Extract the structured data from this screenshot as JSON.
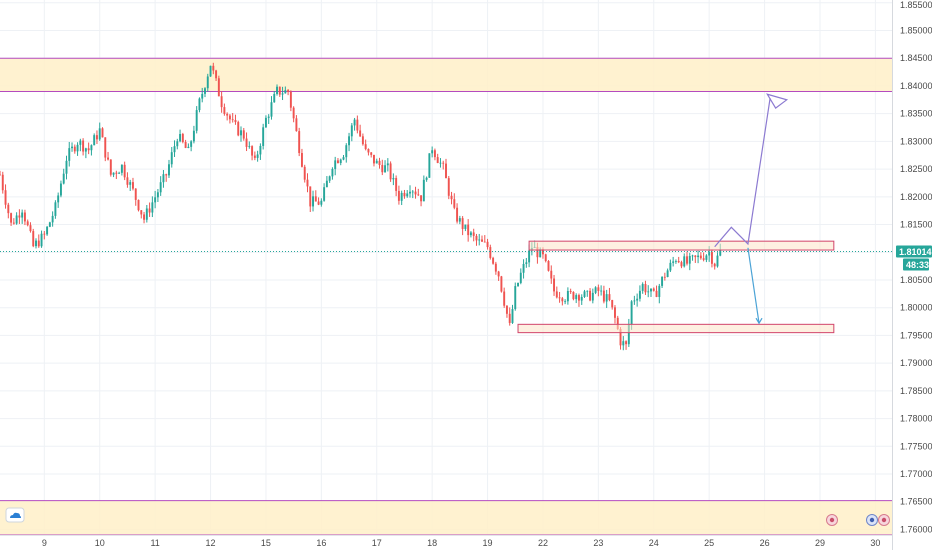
{
  "colors": {
    "background": "#ffffff",
    "grid": "#eef1f5",
    "up_candle": "#26a69a",
    "down_candle": "#ef5350",
    "zone_fill": "#fff0c8",
    "zone_border": "#b44bbf",
    "box_fill": "#fde3c8",
    "box_border": "#d1456b",
    "projection_up": "#8c7ad1",
    "projection_down": "#4ba3d6",
    "price_line": "#26a69a",
    "badge": "#26a69a"
  },
  "icons": {
    "logo": "cloud-logo-icon",
    "event_1": "flag-event-icon",
    "event_2": "flag-event-icon",
    "event_3": "flag-event-icon"
  },
  "chart_data": {
    "type": "candlestick",
    "title": "",
    "xlabel": "",
    "ylabel": "",
    "y_axis_side": "right",
    "ylim": [
      1.759,
      1.8555
    ],
    "grid": true,
    "y_ticks": [
      "1.85500",
      "1.85000",
      "1.84500",
      "1.84000",
      "1.83500",
      "1.83000",
      "1.82500",
      "1.82000",
      "1.81500",
      "1.81000",
      "1.80500",
      "1.80000",
      "1.79500",
      "1.79000",
      "1.78500",
      "1.78000",
      "1.77500",
      "1.77000",
      "1.76500",
      "1.76000"
    ],
    "x_ticks": [
      {
        "label": "9",
        "t": 8
      },
      {
        "label": "10",
        "t": 18
      },
      {
        "label": "11",
        "t": 28
      },
      {
        "label": "12",
        "t": 38
      },
      {
        "label": "15",
        "t": 48
      },
      {
        "label": "16",
        "t": 58
      },
      {
        "label": "17",
        "t": 68
      },
      {
        "label": "18",
        "t": 78
      },
      {
        "label": "19",
        "t": 88
      },
      {
        "label": "22",
        "t": 98
      },
      {
        "label": "23",
        "t": 108
      },
      {
        "label": "24",
        "t": 118
      },
      {
        "label": "25",
        "t": 128
      },
      {
        "label": "26",
        "t": 138
      },
      {
        "label": "29",
        "t": 148
      },
      {
        "label": "30",
        "t": 158
      }
    ],
    "x_range": [
      0,
      161
    ],
    "close_anchors": [
      [
        0,
        1.824
      ],
      [
        2,
        1.815
      ],
      [
        4,
        1.818
      ],
      [
        6,
        1.811
      ],
      [
        8,
        1.813
      ],
      [
        10,
        1.818
      ],
      [
        12,
        1.827
      ],
      [
        14,
        1.83
      ],
      [
        16,
        1.8285
      ],
      [
        18,
        1.832
      ],
      [
        20,
        1.824
      ],
      [
        22,
        1.8255
      ],
      [
        24,
        1.821
      ],
      [
        26,
        1.816
      ],
      [
        28,
        1.82
      ],
      [
        30,
        1.824
      ],
      [
        32,
        1.831
      ],
      [
        34,
        1.828
      ],
      [
        36,
        1.837
      ],
      [
        38,
        1.844
      ],
      [
        40,
        1.837
      ],
      [
        42,
        1.833
      ],
      [
        44,
        1.831
      ],
      [
        46,
        1.826
      ],
      [
        48,
        1.834
      ],
      [
        50,
        1.839
      ],
      [
        52,
        1.839
      ],
      [
        54,
        1.829
      ],
      [
        56,
        1.819
      ],
      [
        58,
        1.819
      ],
      [
        60,
        1.826
      ],
      [
        62,
        1.828
      ],
      [
        64,
        1.834
      ],
      [
        66,
        1.828
      ],
      [
        68,
        1.826
      ],
      [
        70,
        1.825
      ],
      [
        72,
        1.82
      ],
      [
        74,
        1.822
      ],
      [
        76,
        1.82
      ],
      [
        78,
        1.829
      ],
      [
        80,
        1.825
      ],
      [
        82,
        1.817
      ],
      [
        84,
        1.814
      ],
      [
        86,
        1.812
      ],
      [
        88,
        1.811
      ],
      [
        90,
        1.806
      ],
      [
        92,
        1.7965
      ],
      [
        93,
        1.803
      ],
      [
        94,
        1.806
      ],
      [
        96,
        1.811
      ],
      [
        98,
        1.809
      ],
      [
        100,
        1.803
      ],
      [
        102,
        1.802
      ],
      [
        104,
        1.8025
      ],
      [
        106,
        1.802
      ],
      [
        108,
        1.803
      ],
      [
        110,
        1.801
      ],
      [
        111,
        1.798
      ],
      [
        112,
        1.794
      ],
      [
        113,
        1.793
      ],
      [
        114,
        1.801
      ],
      [
        116,
        1.804
      ],
      [
        118,
        1.802
      ],
      [
        120,
        1.806
      ],
      [
        122,
        1.809
      ],
      [
        124,
        1.808
      ],
      [
        126,
        1.809
      ],
      [
        128,
        1.81
      ],
      [
        129,
        1.808
      ],
      [
        130,
        1.8101
      ]
    ],
    "last_price": "1.81014",
    "countdown": "48:33",
    "zones": [
      {
        "name": "resistance-zone",
        "y_low": 1.839,
        "y_high": 1.845,
        "t_start": 0,
        "t_end": 161
      },
      {
        "name": "support-zone",
        "y_low": 1.759,
        "y_high": 1.7652,
        "t_start": 0,
        "t_end": 161
      }
    ],
    "boxes": [
      {
        "name": "upper-box",
        "y_low": 1.8104,
        "y_high": 1.812,
        "t_start": 95.5,
        "t_end": 150.5
      },
      {
        "name": "lower-box",
        "y_low": 1.7955,
        "y_high": 1.797,
        "t_start": 93.5,
        "t_end": 150.5
      }
    ],
    "projections": [
      {
        "name": "bullish-path",
        "points": [
          [
            129,
            1.811
          ],
          [
            132,
            1.8145
          ],
          [
            135,
            1.8115
          ],
          [
            139,
            1.8378
          ]
        ],
        "arrow_head": [
          [
            138.5,
            1.8385
          ],
          [
            142,
            1.8375
          ],
          [
            140,
            1.836
          ]
        ]
      },
      {
        "name": "bearish-path",
        "points": [
          [
            135,
            1.8108
          ],
          [
            137,
            1.7972
          ]
        ]
      }
    ]
  }
}
